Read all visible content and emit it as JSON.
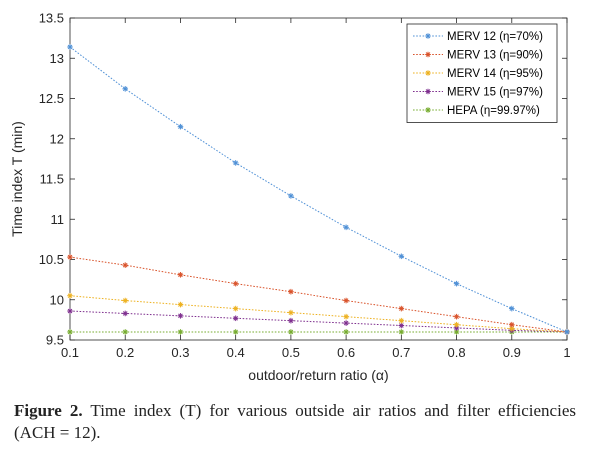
{
  "chart_data": {
    "type": "line",
    "xlabel": "outdoor/return ratio (α)",
    "ylabel": "Time index T (min)",
    "xlim": [
      0.1,
      1
    ],
    "ylim": [
      9.5,
      13.5
    ],
    "xticks": [
      "0.1",
      "0.2",
      "0.3",
      "0.4",
      "0.5",
      "0.6",
      "0.7",
      "0.8",
      "0.9",
      "1"
    ],
    "yticks": [
      "9.5",
      "10",
      "10.5",
      "11",
      "11.5",
      "12",
      "12.5",
      "13",
      "13.5"
    ],
    "grid": false,
    "legend_position": "top-right",
    "x": [
      0.1,
      0.2,
      0.3,
      0.4,
      0.5,
      0.6,
      0.7,
      0.8,
      0.9,
      1.0
    ],
    "series": [
      {
        "name": "MERV 12 (η=70%)",
        "color": "#4F90D6",
        "values": [
          13.14,
          12.62,
          12.15,
          11.7,
          11.29,
          10.9,
          10.54,
          10.2,
          9.89,
          9.6
        ]
      },
      {
        "name": "MERV 13 (η=90%)",
        "color": "#D9532B",
        "values": [
          10.53,
          10.43,
          10.31,
          10.2,
          10.1,
          9.99,
          9.89,
          9.79,
          9.69,
          9.6
        ]
      },
      {
        "name": "MERV 14 (η=95%)",
        "color": "#EDB120",
        "values": [
          10.05,
          9.99,
          9.94,
          9.89,
          9.84,
          9.79,
          9.74,
          9.69,
          9.64,
          9.6
        ]
      },
      {
        "name": "MERV 15 (η=97%)",
        "color": "#7E2F8E",
        "values": [
          9.86,
          9.83,
          9.8,
          9.77,
          9.74,
          9.71,
          9.68,
          9.65,
          9.62,
          9.6
        ]
      },
      {
        "name": "HEPA (η=99.97%)",
        "color": "#77AC30",
        "values": [
          9.6,
          9.6,
          9.6,
          9.6,
          9.6,
          9.6,
          9.6,
          9.6,
          9.6,
          9.6
        ]
      }
    ]
  },
  "caption": {
    "label": "Figure 2.",
    "text": "Time index (T) for various outside air ratios and filter efficiencies (ACH = 12)."
  }
}
